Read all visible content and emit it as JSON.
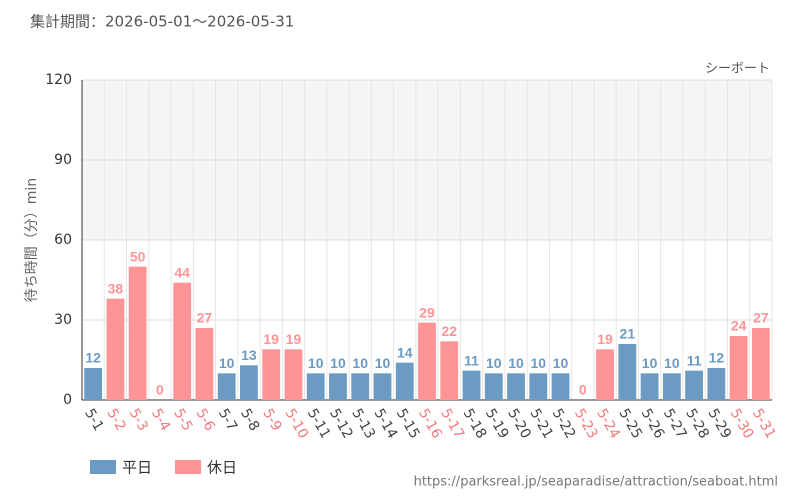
{
  "chart_data": {
    "type": "bar",
    "title": "集計期間：2026-05-01～2026-05-31",
    "annotation": "シーボート",
    "y_label": "待ち時間（分）min",
    "source": "https://parksreal.jp/seaparadise/attraction/seaboat.html",
    "categories": [
      "5-1",
      "5-2",
      "5-3",
      "5-4",
      "5-5",
      "5-6",
      "5-7",
      "5-8",
      "5-9",
      "5-10",
      "5-11",
      "5-12",
      "5-13",
      "5-14",
      "5-15",
      "5-16",
      "5-17",
      "5-18",
      "5-19",
      "5-20",
      "5-21",
      "5-22",
      "5-23",
      "5-24",
      "5-25",
      "5-26",
      "5-27",
      "5-28",
      "5-29",
      "5-30",
      "5-31"
    ],
    "series": [
      {
        "name": "平日",
        "color": "#6b9bc3",
        "values": [
          12,
          null,
          null,
          null,
          null,
          null,
          10,
          13,
          null,
          null,
          10,
          10,
          10,
          10,
          14,
          null,
          null,
          11,
          10,
          10,
          10,
          10,
          null,
          null,
          21,
          10,
          10,
          11,
          12,
          null,
          null
        ]
      },
      {
        "name": "休日",
        "color": "#ff9496",
        "values": [
          null,
          38,
          50,
          0,
          44,
          27,
          null,
          null,
          19,
          19,
          null,
          null,
          null,
          null,
          null,
          29,
          22,
          null,
          null,
          null,
          null,
          null,
          0,
          19,
          null,
          null,
          null,
          null,
          null,
          24,
          27
        ]
      }
    ],
    "ylim": [
      0,
      120
    ],
    "yticks": [
      0,
      30,
      60,
      90,
      120
    ],
    "grid": true,
    "legend": "bottom-left"
  }
}
